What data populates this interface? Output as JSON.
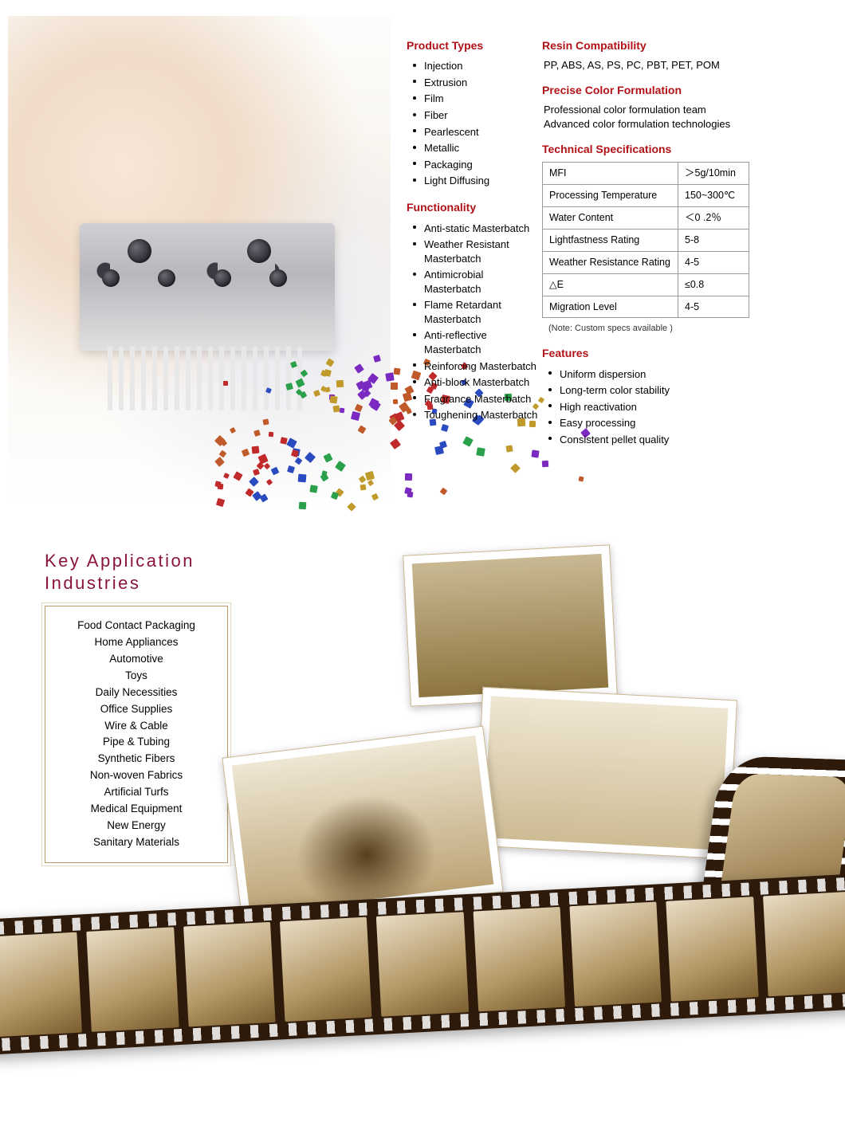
{
  "colors": {
    "heading": "#b01217",
    "section": "#8a1538",
    "border": "#9a9a9a",
    "box_border": "#b89a6a",
    "film": "#2e1a0a"
  },
  "product_types": {
    "title": "Product Types",
    "items": [
      "Injection",
      "Extrusion",
      "Film",
      "Fiber",
      "Pearlescent",
      "Metallic",
      "Packaging",
      "Light Diffusing"
    ]
  },
  "functionality": {
    "title": "Functionality",
    "items": [
      "Anti-static Masterbatch",
      "Weather Resistant Masterbatch",
      "Antimicrobial Masterbatch",
      "Flame Retardant Masterbatch",
      "Anti-reflective Masterbatch",
      "Reinforcing Masterbatch",
      "Anti-block Masterbatch",
      "Fragrance Masterbatch",
      "Toughening Masterbatch"
    ]
  },
  "resin": {
    "title": "Resin Compatibility",
    "text": "PP, ABS, AS, PS, PC, PBT, PET, POM"
  },
  "precise": {
    "title": "Precise Color Formulation",
    "line1": "Professional color formulation team",
    "line2": "Advanced color formulation technologies"
  },
  "specs": {
    "title": "Technical Specifications",
    "rows": [
      {
        "k": "MFI",
        "v": "＞5g/10min"
      },
      {
        "k": "Processing Temperature",
        "v": "150~300℃"
      },
      {
        "k": "Water Content",
        "v": "＜0 .2％"
      },
      {
        "k": "Lightfastness Rating",
        "v": "5-8"
      },
      {
        "k": "Weather Resistance Rating",
        "v": "4-5"
      },
      {
        "k": "△E",
        "v": "≤0.8"
      },
      {
        "k": "Migration Level",
        "v": "4-5"
      }
    ],
    "note": "(Note: Custom specs available )"
  },
  "features": {
    "title": "Features",
    "items": [
      "Uniform dispersion",
      "Long-term color stability",
      "High reactivation",
      "Easy processing",
      "Consistent pellet quality"
    ]
  },
  "section2": {
    "title_l1": "Key Application",
    "title_l2": "Industries"
  },
  "industries": [
    "Food Contact Packaging",
    "Home Appliances",
    "Automotive",
    "Toys",
    "Daily Necessities",
    "Office Supplies",
    "Wire & Cable",
    "Pipe & Tubing",
    "Synthetic Fibers",
    "Non-woven Fabrics",
    "Artificial Turfs",
    "Medical Equipment",
    "New Energy",
    "Sanitary Materials"
  ],
  "pellet_colors": [
    "#c02a2a",
    "#2a4ac0",
    "#2aa04a",
    "#c09a2a",
    "#7a2ac0",
    "#c05a2a"
  ],
  "film_frames": 9
}
